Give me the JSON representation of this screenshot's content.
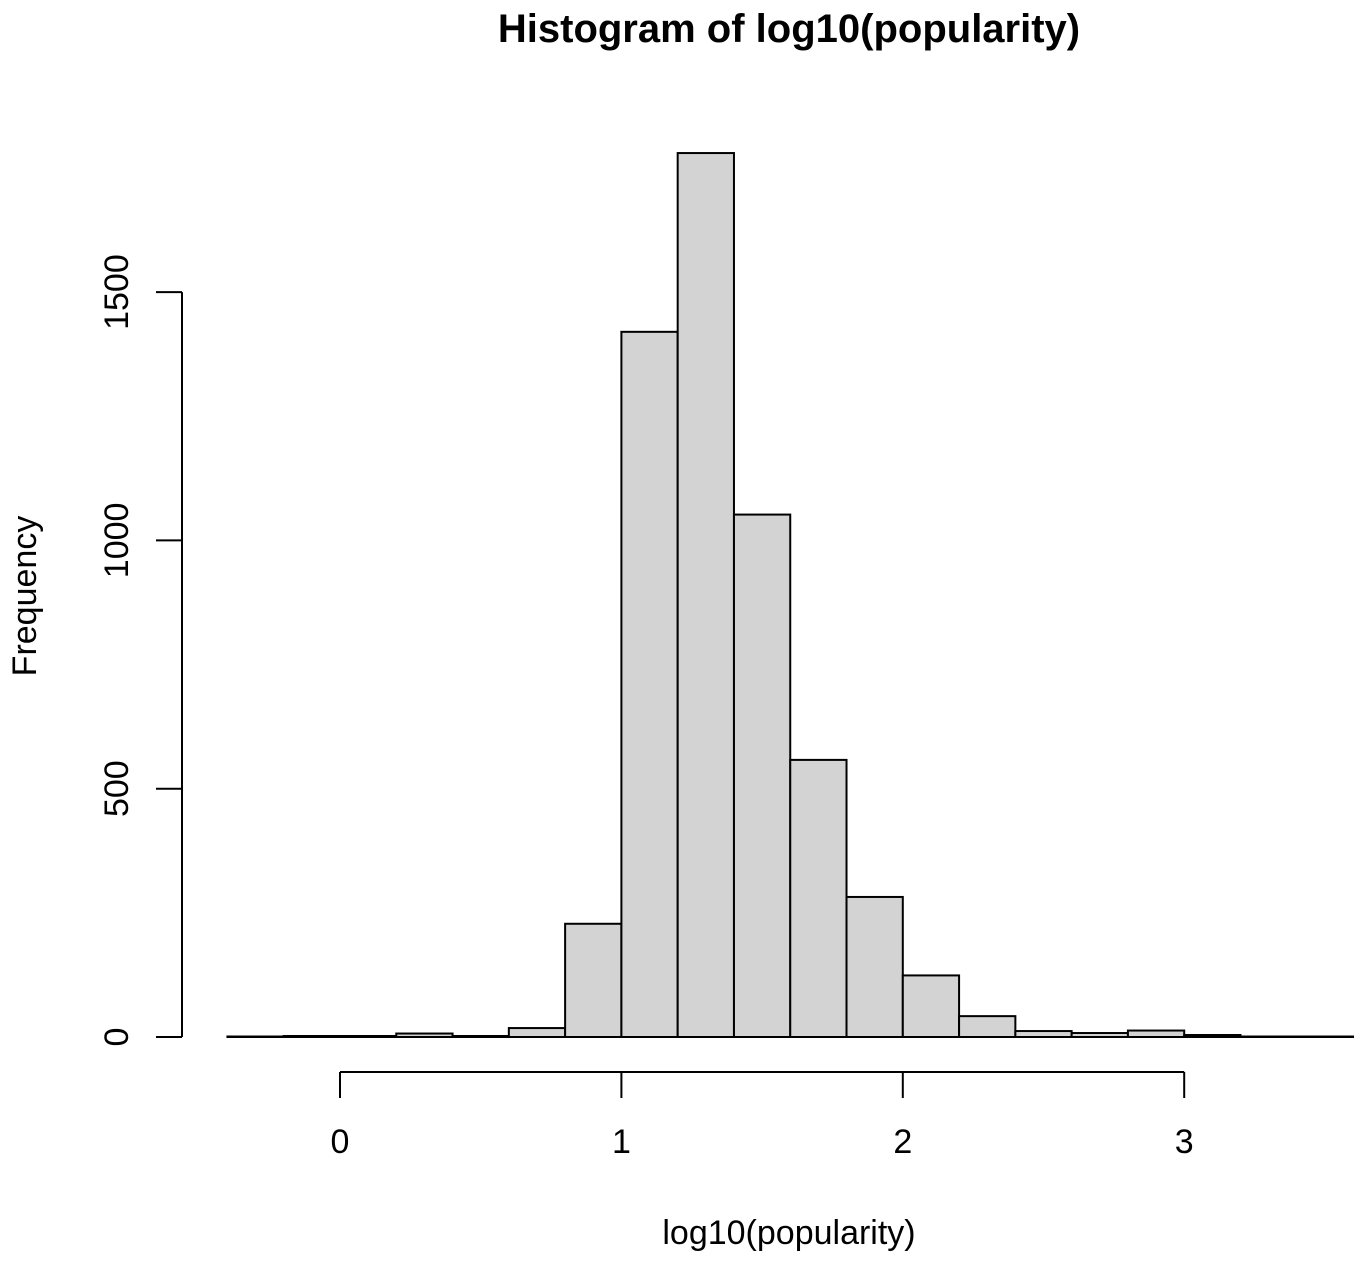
{
  "chart_data": {
    "type": "bar",
    "title": "Histogram of log10(popularity)",
    "xlabel": "log10(popularity)",
    "ylabel": "Frequency",
    "bin_edges": [
      -0.4,
      -0.2,
      0.0,
      0.2,
      0.4,
      0.6,
      0.8,
      1.0,
      1.2,
      1.4,
      1.6,
      1.8,
      2.0,
      2.2,
      2.4,
      2.6,
      2.8,
      3.0,
      3.2,
      3.4,
      3.6
    ],
    "values": [
      1,
      2,
      2,
      7,
      2,
      18,
      228,
      1420,
      1780,
      1052,
      558,
      282,
      124,
      42,
      12,
      8,
      13,
      4,
      1,
      1
    ],
    "xlim": [
      -0.4,
      3.6
    ],
    "ylim": [
      0,
      1800
    ],
    "x_ticks": [
      0,
      1,
      2,
      3
    ],
    "x_tick_labels": [
      "0",
      "1",
      "2",
      "3"
    ],
    "y_ticks": [
      0,
      500,
      1000,
      1500
    ],
    "y_tick_labels": [
      "0",
      "500",
      "1000",
      "1500"
    ],
    "grid": false,
    "colors": {
      "bar_fill": "#d3d3d3",
      "bar_stroke": "#000000"
    }
  }
}
